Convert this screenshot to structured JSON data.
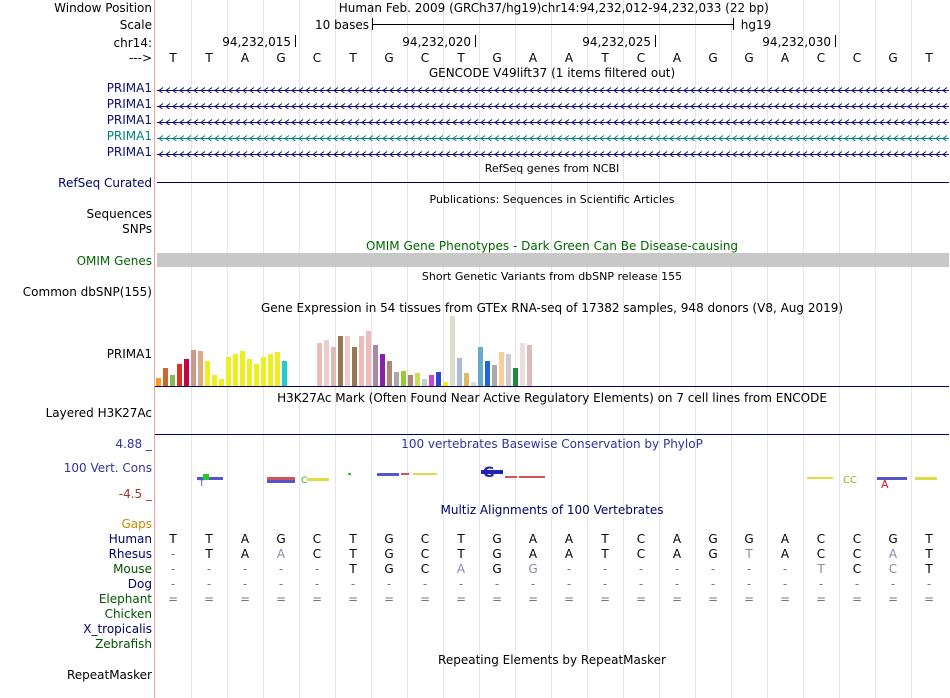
{
  "labels": {
    "window_position": "Window Position",
    "scale": "Scale",
    "chrom": "chr14:",
    "arrow": "--->",
    "refseq": "RefSeq Curated",
    "sequences": "Sequences",
    "snps": "SNPs",
    "omim": "OMIM Genes",
    "dbsnp": "Common dbSNP(155)",
    "gtex_gene": "PRIMA1",
    "h3k27ac": "Layered H3K27Ac",
    "cons": "100 Vert. Cons",
    "cons_max": "4.88 _",
    "cons_min": "-4.5 _",
    "gaps": "Gaps",
    "repeatmasker": "RepeatMasker"
  },
  "header": {
    "assembly": "Human Feb. 2009 (GRCh37/hg19)",
    "position": "chr14:94,232,012-94,232,033 (22 bp)",
    "scale_text": "10 bases",
    "scale_db": "hg19"
  },
  "coords": [
    "94,232,015",
    "94,232,020",
    "94,232,025",
    "94,232,030"
  ],
  "sequence": [
    "T",
    "T",
    "A",
    "G",
    "C",
    "T",
    "G",
    "C",
    "T",
    "G",
    "A",
    "A",
    "T",
    "C",
    "A",
    "G",
    "G",
    "A",
    "C",
    "C",
    "G",
    "T"
  ],
  "tracks": {
    "gencode_title": "GENCODE V49lift37 (1 items filtered out)",
    "gencode_items": [
      "PRIMA1",
      "PRIMA1",
      "PRIMA1",
      "PRIMA1",
      "PRIMA1"
    ],
    "refseq_title": "RefSeq genes from NCBI",
    "pubs_title": "Publications: Sequences in Scientific Articles",
    "omim_title": "OMIM Gene Phenotypes - Dark Green Can Be Disease-causing",
    "dbsnp_title": "Short Genetic Variants from dbSNP release 155",
    "gtex_title": "Gene Expression in 54 tissues from GTEx RNA-seq of 17382 samples, 948 donors (V8, Aug 2019)",
    "h3k27ac_title": "H3K27Ac Mark (Often Found Near Active Regulatory Elements) on 7 cell lines from ENCODE",
    "cons_title": "100 vertebrates Basewise Conservation by PhyloP",
    "multiz_title": "Multiz Alignments of 100 Vertebrates",
    "rmsk_title": "Repeating Elements by RepeatMasker"
  },
  "gtex_levels": [
    0.12,
    0.25,
    0.15,
    0.32,
    0.38,
    0.52,
    0.5,
    0.35,
    0.15,
    0.1,
    0.42,
    0.46,
    0.5,
    0.38,
    0.32,
    0.42,
    0.45,
    0.48,
    0.35,
    0.0,
    0.0,
    0.0,
    0.0,
    0.62,
    0.65,
    0.55,
    0.72,
    0.72,
    0.55,
    0.72,
    0.78,
    0.58,
    0.45,
    0.35,
    0.2,
    0.22,
    0.16,
    0.18,
    0.1,
    0.15,
    0.2,
    0.06,
    1.0,
    0.4,
    0.18,
    0.06,
    0.55,
    0.35,
    0.3,
    0.48,
    0.45,
    0.25,
    0.62,
    0.58
  ],
  "gtex_colors": [
    "#ff9922",
    "#cc6633",
    "#88bb55",
    "#dd3322",
    "#cc0044",
    "#cc9988",
    "#ddaa88",
    "#eeee22",
    "#eeee22",
    "#eeee22",
    "#eeee22",
    "#eeee22",
    "#eeee22",
    "#eeee22",
    "#eeee22",
    "#eeee22",
    "#eeee22",
    "#eeee22",
    "#22cccc",
    "#ffffff",
    "#ffffff",
    "#ffffff",
    "#ffffff",
    "#eebbbb",
    "#eecccc",
    "#ddbbbb",
    "#997755",
    "#eecccc",
    "#997755",
    "#eebbbb",
    "#eebbbb",
    "#aa88aa",
    "#8822aa",
    "#aa8877",
    "#aaaaaa",
    "#99cc33",
    "#aa8877",
    "#ccdd55",
    "#cccccc",
    "#cc44cc",
    "#3344cc",
    "#eeee22",
    "#ddddcc",
    "#aabbdd",
    "#ddbb66",
    "#dddddd",
    "#66aacc",
    "#2266dd",
    "#aaaaaa",
    "#ffcc99",
    "#cccccc",
    "#228844",
    "#eedddd",
    "#ddbbbb"
  ],
  "multiz": {
    "species": [
      "Human",
      "Rhesus",
      "Mouse",
      "Dog",
      "Elephant",
      "Chicken",
      "X_tropicalis",
      "Zebrafish"
    ],
    "species_colors": [
      "#000066",
      "#000066",
      "#005500",
      "#000066",
      "#005500",
      "#005500",
      "#000066",
      "#005500"
    ],
    "rows": [
      [
        "T",
        "T",
        "A",
        "G",
        "C",
        "T",
        "G",
        "C",
        "T",
        "G",
        "A",
        "A",
        "T",
        "C",
        "A",
        "G",
        "G",
        "A",
        "C",
        "C",
        "G",
        "T"
      ],
      [
        "-",
        "T",
        "A",
        "A",
        "C",
        "T",
        "G",
        "C",
        "T",
        "G",
        "A",
        "A",
        "T",
        "C",
        "A",
        "G",
        "T",
        "A",
        "C",
        "C",
        "A",
        "T"
      ],
      [
        "-",
        "-",
        "-",
        "-",
        "-",
        "T",
        "G",
        "C",
        "A",
        "G",
        "G",
        "-",
        "-",
        "-",
        "-",
        "-",
        "-",
        "-",
        "T",
        "C",
        "C",
        "T"
      ],
      [
        "-",
        "-",
        "-",
        "-",
        "-",
        "-",
        "-",
        "-",
        "-",
        "-",
        "-",
        "-",
        "-",
        "-",
        "-",
        "-",
        "-",
        "-",
        "-",
        "-",
        "-",
        "-"
      ],
      [
        "=",
        "=",
        "=",
        "=",
        "=",
        "=",
        "=",
        "=",
        "=",
        "=",
        "=",
        "=",
        "=",
        "=",
        "=",
        "=",
        "=",
        "=",
        "=",
        "=",
        "=",
        "="
      ]
    ]
  },
  "colors": {
    "blue_track": "#000066",
    "green_track": "#005500",
    "omim_green": "#006600",
    "teal": "#008080",
    "gencode_blue": "#0c0c78",
    "cons_blue": "#333399",
    "cons_red": "#993333",
    "gaps_orange": "#cc8800",
    "grid": "#e4e4ee"
  }
}
